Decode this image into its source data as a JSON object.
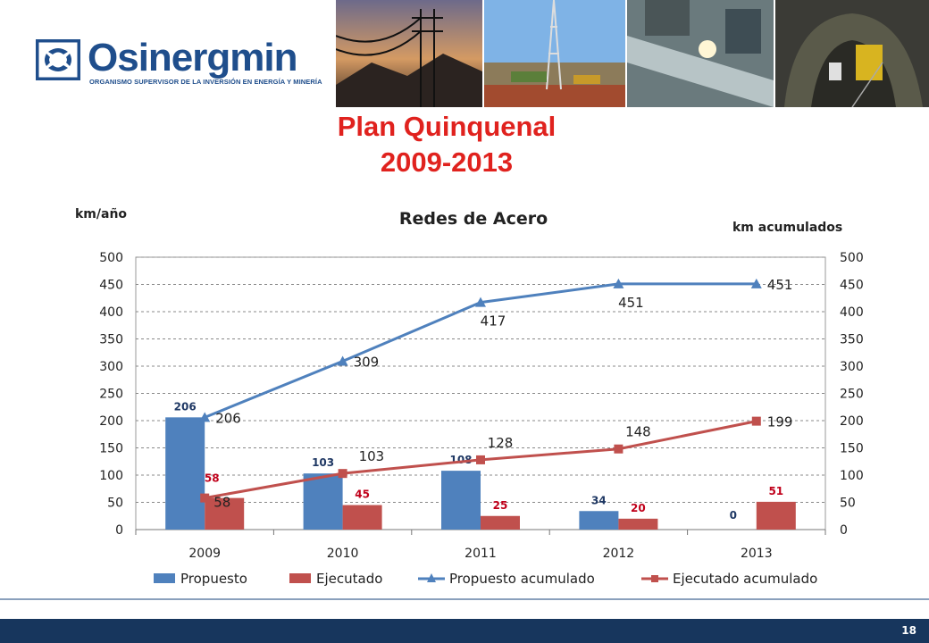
{
  "header": {
    "logo_name": "Osinergmin",
    "logo_sub": "ORGANISMO SUPERVISOR DE LA INVERSIÓN EN ENERGÍA Y MINERÍA",
    "title_line1": "Plan Quinquenal",
    "title_line2": "2009-2013"
  },
  "colors": {
    "propuesto": "#4f81bd",
    "ejecutado": "#c0504d",
    "propuesto_label": "#1f3864",
    "ejecutado_label": "#c0001a",
    "title_red": "#e0221e",
    "brand_blue": "#1f4e8c"
  },
  "chart_data": {
    "type": "bar",
    "title": "Redes de Acero",
    "ylabel_left": "km/año",
    "ylabel_right": "km acumulados",
    "categories": [
      "2009",
      "2010",
      "2011",
      "2012",
      "2013"
    ],
    "ylim": [
      0,
      500
    ],
    "yticks": [
      "0",
      "50",
      "100",
      "150",
      "200",
      "250",
      "300",
      "350",
      "400",
      "450",
      "500"
    ],
    "grid": true,
    "legend_position": "bottom",
    "series": [
      {
        "name": "Propuesto",
        "kind": "bar",
        "values": [
          206,
          103,
          108,
          34,
          0
        ]
      },
      {
        "name": "Ejecutado",
        "kind": "bar",
        "values": [
          58,
          45,
          25,
          20,
          51
        ]
      },
      {
        "name": "Propuesto acumulado",
        "kind": "line",
        "marker": "triangle",
        "values": [
          206,
          309,
          417,
          451,
          451
        ]
      },
      {
        "name": "Ejecutado acumulado",
        "kind": "line",
        "marker": "square",
        "values": [
          58,
          103,
          128,
          148,
          199
        ]
      }
    ]
  },
  "footer": {
    "page_number": "18"
  }
}
